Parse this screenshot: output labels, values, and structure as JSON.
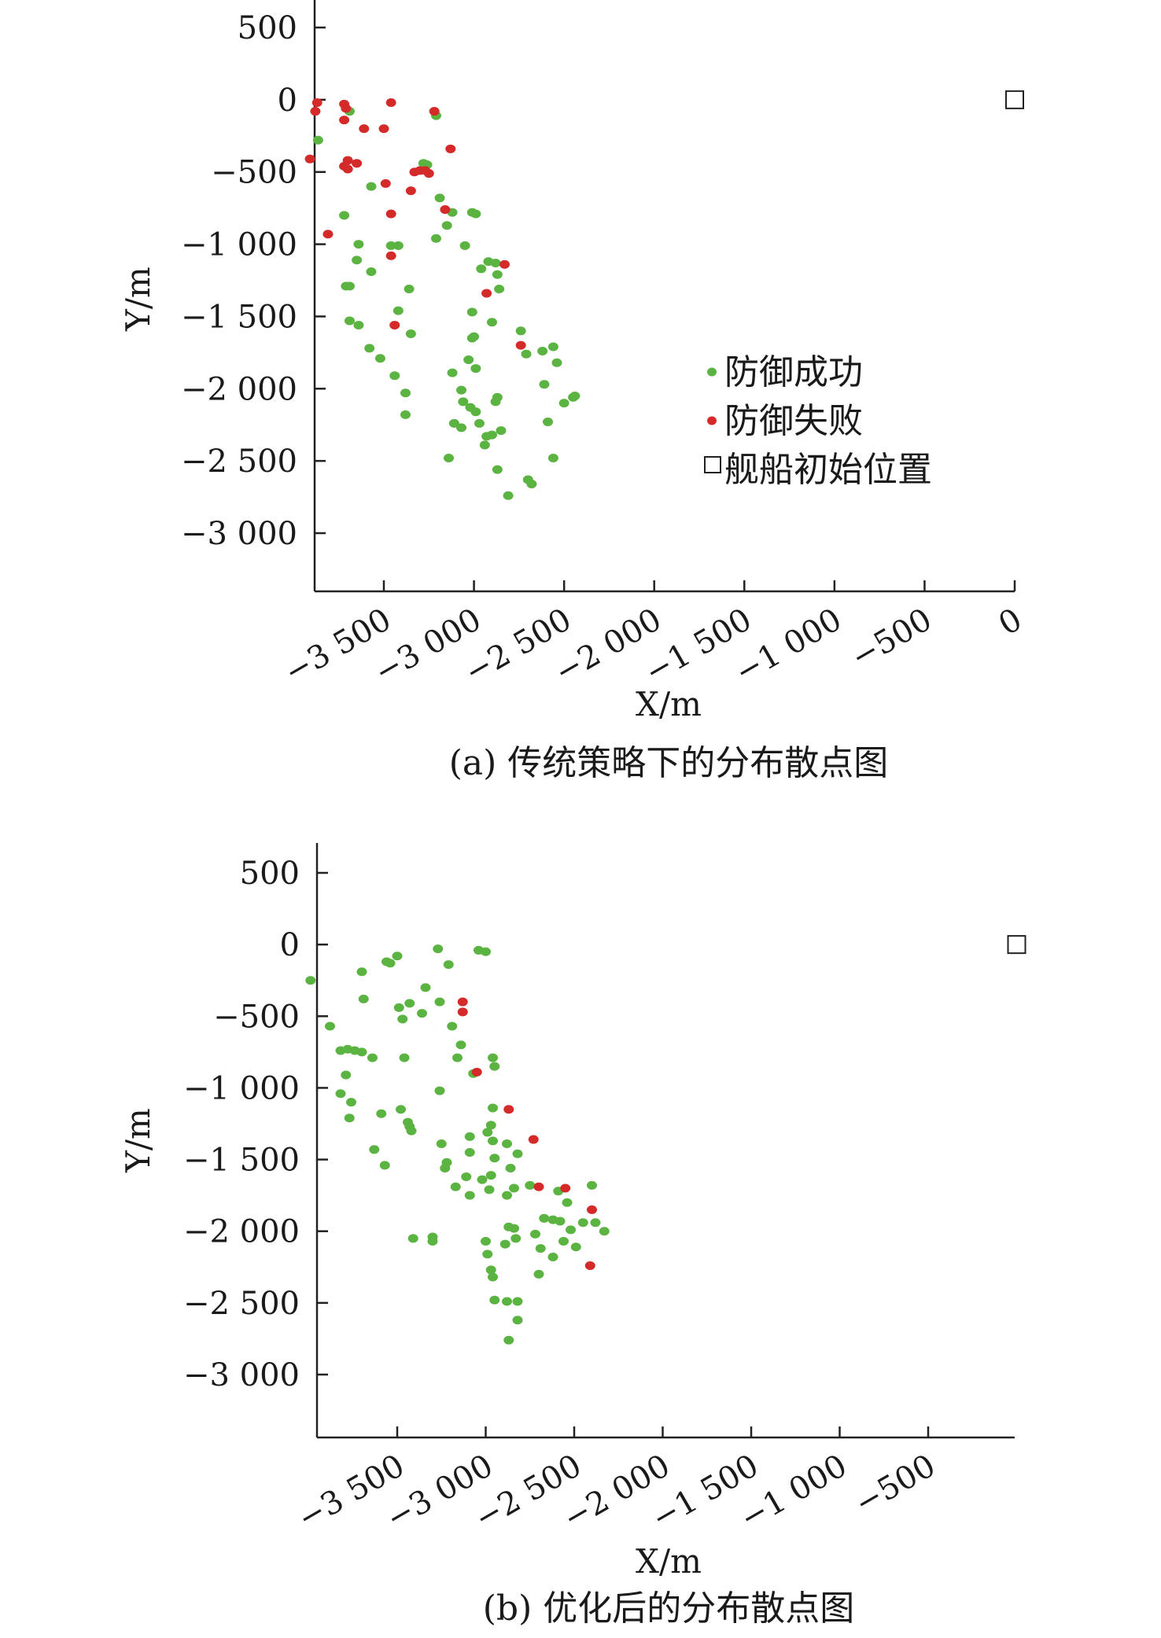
{
  "colors": {
    "success": "#5bb341",
    "fail": "#d42a2a",
    "axis": "#222222"
  },
  "chart_data": [
    {
      "type": "scatter",
      "caption": "(a) 传统策略下的分布散点图",
      "xlabel": "X/m",
      "ylabel": "Y/m",
      "xlim": [
        -3900,
        0
      ],
      "ylim": [
        -3400,
        700
      ],
      "x_ticks": [
        -3500,
        -3000,
        -2500,
        -2000,
        -1500,
        -1000,
        -500,
        0
      ],
      "x_tick_labels": [
        "−3 500",
        "−3 000",
        "−2 500",
        "−2 000",
        "−1 500",
        "−1 000",
        "−500",
        "0"
      ],
      "y_ticks": [
        500,
        0,
        -500,
        -1000,
        -1500,
        -2000,
        -2500,
        -3000
      ],
      "y_tick_labels": [
        "500",
        "0",
        "−500",
        "−1 000",
        "−1 500",
        "−2 000",
        "−2 500",
        "−3 000"
      ],
      "legend": {
        "position": "right",
        "items": [
          {
            "label": "防御成功",
            "marker": "dot",
            "color": "#5bb341"
          },
          {
            "label": "防御失败",
            "marker": "dot",
            "color": "#d42a2a"
          },
          {
            "label": "舰船初始位置",
            "marker": "square",
            "color": "#222222"
          }
        ]
      },
      "ship": {
        "x": 0,
        "y": 0
      },
      "series": [
        {
          "name": "防御成功",
          "color": "#5bb341",
          "points": [
            [
              -3865,
              -280
            ],
            [
              -3690,
              -80
            ],
            [
              -3720,
              -800
            ],
            [
              -3640,
              -1000
            ],
            [
              -3650,
              -1110
            ],
            [
              -3570,
              -1190
            ],
            [
              -3710,
              -1290
            ],
            [
              -3690,
              -1290
            ],
            [
              -3690,
              -1530
            ],
            [
              -3640,
              -1560
            ],
            [
              -3580,
              -1720
            ],
            [
              -3520,
              -1790
            ],
            [
              -3440,
              -1910
            ],
            [
              -3380,
              -2030
            ],
            [
              -3380,
              -2180
            ],
            [
              -3570,
              -600
            ],
            [
              -3460,
              -1010
            ],
            [
              -3420,
              -1010
            ],
            [
              -3360,
              -1310
            ],
            [
              -3420,
              -1460
            ],
            [
              -3350,
              -1620
            ],
            [
              -3210,
              -110
            ],
            [
              -3150,
              -870
            ],
            [
              -3210,
              -960
            ],
            [
              -3190,
              -680
            ],
            [
              -3280,
              -440
            ],
            [
              -3280,
              -480
            ],
            [
              -3260,
              -450
            ],
            [
              -3120,
              -780
            ],
            [
              -3050,
              -1010
            ],
            [
              -2990,
              -790
            ],
            [
              -3010,
              -780
            ],
            [
              -2960,
              -1170
            ],
            [
              -2920,
              -1120
            ],
            [
              -2880,
              -1130
            ],
            [
              -2870,
              -1210
            ],
            [
              -2860,
              -1310
            ],
            [
              -3010,
              -1470
            ],
            [
              -2900,
              -1540
            ],
            [
              -3000,
              -1640
            ],
            [
              -3010,
              -1650
            ],
            [
              -3030,
              -1800
            ],
            [
              -2990,
              -1860
            ],
            [
              -3120,
              -1890
            ],
            [
              -3070,
              -2010
            ],
            [
              -3060,
              -2090
            ],
            [
              -3020,
              -2130
            ],
            [
              -2990,
              -2160
            ],
            [
              -2970,
              -2240
            ],
            [
              -3070,
              -2270
            ],
            [
              -3110,
              -2240
            ],
            [
              -2930,
              -2330
            ],
            [
              -2900,
              -2320
            ],
            [
              -2940,
              -2390
            ],
            [
              -2870,
              -2060
            ],
            [
              -2880,
              -2090
            ],
            [
              -2850,
              -2290
            ],
            [
              -3140,
              -2480
            ],
            [
              -2870,
              -2560
            ],
            [
              -2810,
              -2740
            ],
            [
              -2700,
              -2630
            ],
            [
              -2680,
              -2660
            ],
            [
              -2710,
              -1760
            ],
            [
              -2620,
              -1740
            ],
            [
              -2560,
              -1710
            ],
            [
              -2540,
              -1820
            ],
            [
              -2610,
              -1970
            ],
            [
              -2500,
              -2100
            ],
            [
              -2450,
              -2060
            ],
            [
              -2440,
              -2050
            ],
            [
              -2590,
              -2230
            ],
            [
              -2560,
              -2480
            ],
            [
              -2740,
              -1600
            ]
          ]
        },
        {
          "name": "防御失败",
          "color": "#d42a2a",
          "points": [
            [
              -3870,
              -20
            ],
            [
              -3880,
              -80
            ],
            [
              -3720,
              -30
            ],
            [
              -3710,
              -60
            ],
            [
              -3720,
              -140
            ],
            [
              -3610,
              -200
            ],
            [
              -3500,
              -200
            ],
            [
              -3460,
              -20
            ],
            [
              -3220,
              -80
            ],
            [
              -3130,
              -340
            ],
            [
              -3700,
              -480
            ],
            [
              -3720,
              -460
            ],
            [
              -3650,
              -440
            ],
            [
              -3910,
              -410
            ],
            [
              -3700,
              -420
            ],
            [
              -3810,
              -930
            ],
            [
              -3490,
              -580
            ],
            [
              -3330,
              -500
            ],
            [
              -3300,
              -490
            ],
            [
              -3250,
              -510
            ],
            [
              -3270,
              -490
            ],
            [
              -3350,
              -630
            ],
            [
              -3160,
              -760
            ],
            [
              -3460,
              -790
            ],
            [
              -3460,
              -1080
            ],
            [
              -2830,
              -1140
            ],
            [
              -2930,
              -1340
            ],
            [
              -3440,
              -1560
            ],
            [
              -2740,
              -1700
            ]
          ]
        }
      ]
    },
    {
      "type": "scatter",
      "caption": "(b) 优化后的分布散点图",
      "xlabel": "X/m",
      "ylabel": "Y/m",
      "xlim": [
        -4000,
        0
      ],
      "ylim": [
        -3400,
        700
      ],
      "x_ticks": [
        -3500,
        -3000,
        -2500,
        -2000,
        -1500,
        -1000,
        -500
      ],
      "x_tick_labels": [
        "−3 500",
        "−3 000",
        "−2 500",
        "−2 000",
        "−1 500",
        "−1 000",
        "−500"
      ],
      "y_ticks": [
        500,
        0,
        -500,
        -1000,
        -1500,
        -2000,
        -2500,
        -3000
      ],
      "y_tick_labels": [
        "500",
        "0",
        "−500",
        "−1 000",
        "−1 500",
        "−2 000",
        "−2 500",
        "−3 000"
      ],
      "ship": {
        "x": 0,
        "y": 0
      },
      "series": [
        {
          "name": "防御成功",
          "color": "#5bb341",
          "points": [
            [
              -3990,
              -250
            ],
            [
              -3880,
              -570
            ],
            [
              -3820,
              -740
            ],
            [
              -3780,
              -730
            ],
            [
              -3790,
              -910
            ],
            [
              -3740,
              -740
            ],
            [
              -3700,
              -750
            ],
            [
              -3700,
              -190
            ],
            [
              -3690,
              -380
            ],
            [
              -3820,
              -1040
            ],
            [
              -3760,
              -1100
            ],
            [
              -3770,
              -1210
            ],
            [
              -3640,
              -790
            ],
            [
              -3590,
              -1180
            ],
            [
              -3630,
              -1430
            ],
            [
              -3570,
              -1540
            ],
            [
              -3560,
              -120
            ],
            [
              -3540,
              -130
            ],
            [
              -3500,
              -80
            ],
            [
              -3490,
              -440
            ],
            [
              -3470,
              -520
            ],
            [
              -3430,
              -410
            ],
            [
              -3480,
              -1150
            ],
            [
              -3460,
              -790
            ],
            [
              -3430,
              -1270
            ],
            [
              -3440,
              -1240
            ],
            [
              -3420,
              -1300
            ],
            [
              -3340,
              -300
            ],
            [
              -3360,
              -480
            ],
            [
              -3270,
              -30
            ],
            [
              -3260,
              -400
            ],
            [
              -3210,
              -140
            ],
            [
              -3190,
              -570
            ],
            [
              -3160,
              -790
            ],
            [
              -3260,
              -1020
            ],
            [
              -3250,
              -1390
            ],
            [
              -3220,
              -1520
            ],
            [
              -3230,
              -1560
            ],
            [
              -3170,
              -1690
            ],
            [
              -3110,
              -1620
            ],
            [
              -3090,
              -1750
            ],
            [
              -3410,
              -2050
            ],
            [
              -3300,
              -2070
            ],
            [
              -3300,
              -2040
            ],
            [
              -3140,
              -700
            ],
            [
              -3040,
              -40
            ],
            [
              -3000,
              -50
            ],
            [
              -3070,
              -900
            ],
            [
              -2960,
              -790
            ],
            [
              -2950,
              -850
            ],
            [
              -2960,
              -1140
            ],
            [
              -2970,
              -1260
            ],
            [
              -2990,
              -1310
            ],
            [
              -2960,
              -1370
            ],
            [
              -2950,
              -1490
            ],
            [
              -2970,
              -1610
            ],
            [
              -3090,
              -1450
            ],
            [
              -3090,
              -1340
            ],
            [
              -3020,
              -1640
            ],
            [
              -2980,
              -1710
            ],
            [
              -3000,
              -2070
            ],
            [
              -2990,
              -2160
            ],
            [
              -2970,
              -2270
            ],
            [
              -2960,
              -2320
            ],
            [
              -2950,
              -2480
            ],
            [
              -2880,
              -1750
            ],
            [
              -2860,
              -1560
            ],
            [
              -2820,
              -1460
            ],
            [
              -2840,
              -1700
            ],
            [
              -2880,
              -1390
            ],
            [
              -2870,
              -1970
            ],
            [
              -2840,
              -1980
            ],
            [
              -2890,
              -2090
            ],
            [
              -2830,
              -2050
            ],
            [
              -2880,
              -2490
            ],
            [
              -2820,
              -2490
            ],
            [
              -2820,
              -2620
            ],
            [
              -2870,
              -2760
            ],
            [
              -2750,
              -1680
            ],
            [
              -2720,
              -2020
            ],
            [
              -2690,
              -2120
            ],
            [
              -2670,
              -1910
            ],
            [
              -2620,
              -1920
            ],
            [
              -2620,
              -2180
            ],
            [
              -2700,
              -2300
            ],
            [
              -2590,
              -1720
            ],
            [
              -2580,
              -1930
            ],
            [
              -2560,
              -2070
            ],
            [
              -2520,
              -1990
            ],
            [
              -2490,
              -2110
            ],
            [
              -2450,
              -1940
            ],
            [
              -2380,
              -1940
            ],
            [
              -2330,
              -2000
            ],
            [
              -2400,
              -1680
            ],
            [
              -2540,
              -1800
            ]
          ]
        },
        {
          "name": "防御失败",
          "color": "#d42a2a",
          "points": [
            [
              -3130,
              -400
            ],
            [
              -3130,
              -470
            ],
            [
              -3050,
              -890
            ],
            [
              -2870,
              -1150
            ],
            [
              -2730,
              -1360
            ],
            [
              -2700,
              -1690
            ],
            [
              -2550,
              -1700
            ],
            [
              -2410,
              -2240
            ],
            [
              -2400,
              -1850
            ]
          ]
        }
      ]
    }
  ]
}
